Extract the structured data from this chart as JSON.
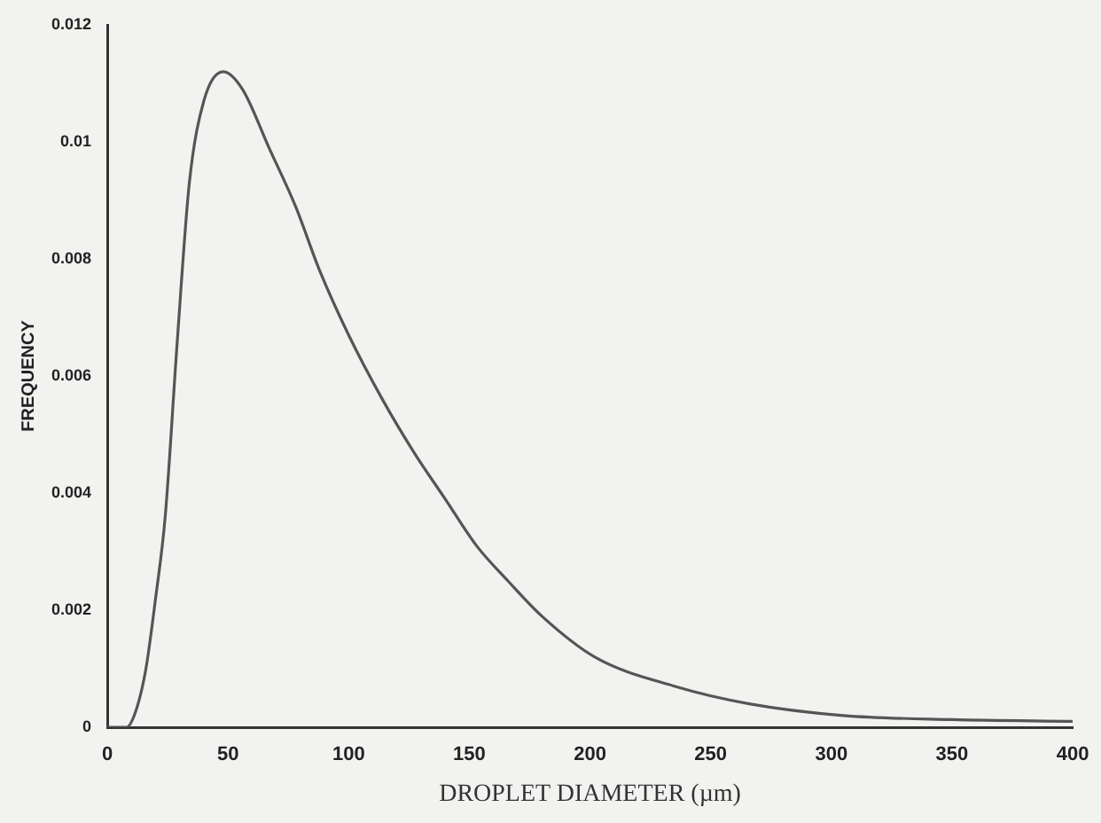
{
  "chart_data": {
    "type": "line",
    "xlabel": "DROPLET DIAMETER (µm)",
    "ylabel": "FREQUENCY",
    "x": [
      0,
      8,
      12,
      16,
      20,
      24,
      29,
      34,
      40,
      48,
      56,
      67,
      78,
      88,
      100,
      114,
      127,
      140,
      153,
      166,
      180,
      202,
      235,
      266,
      305,
      350,
      400
    ],
    "series": [
      {
        "color": "#555555",
        "values": [
          0,
          0,
          0.0003,
          0.001,
          0.0022,
          0.0036,
          0.0066,
          0.0093,
          0.0107,
          0.0112,
          0.0109,
          0.0099,
          0.0089,
          0.0078,
          0.0067,
          0.0056,
          0.0047,
          0.0039,
          0.0031,
          0.0025,
          0.0019,
          0.0012,
          0.0007,
          0.0004,
          0.0002,
          0.00013,
          0.0001
        ]
      }
    ],
    "xlim": [
      0,
      400
    ],
    "xticks": [
      0,
      50,
      100,
      150,
      200,
      250,
      300,
      350,
      400
    ],
    "ylim": [
      0,
      0.012
    ],
    "yticks": [
      0,
      0.002,
      0.004,
      0.006,
      0.008,
      0.01,
      0.012
    ],
    "grid": false,
    "legend": false,
    "marker": "none",
    "line_style": "solid"
  }
}
